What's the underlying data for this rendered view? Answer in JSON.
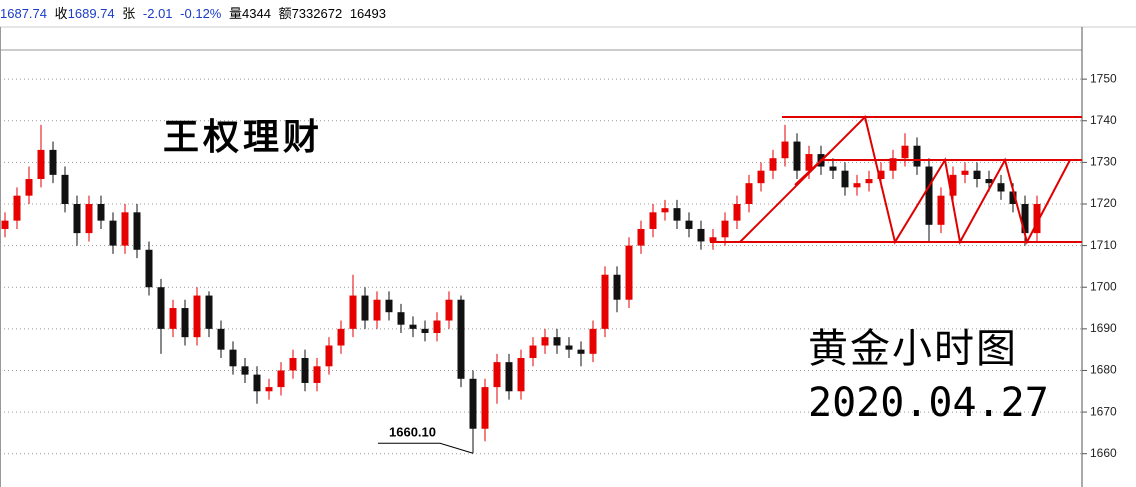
{
  "header": {
    "open": "1687.74",
    "close_label": "收",
    "close": "1689.74",
    "change_label": "张",
    "change": "-2.01",
    "change_pct": "-0.12%",
    "volume_label": "量",
    "volume": "4344",
    "amount_label": "额",
    "amount": "7332672",
    "extra": "16493"
  },
  "chart_data": {
    "type": "candlestick",
    "annotations": [
      "王权理财",
      "黄金小时图",
      "2020.04.27"
    ],
    "low_label": "1660.10",
    "up_color": "#e60000",
    "down_color": "#111111",
    "ylim": [
      1652,
      1757
    ],
    "yticks": [
      1660,
      1670,
      1680,
      1690,
      1700,
      1710,
      1720,
      1730,
      1740,
      1750
    ],
    "grid": true,
    "open": [
      1714,
      1716,
      1722,
      1726,
      1733,
      1727,
      1720,
      1713,
      1720,
      1716,
      1710,
      1718,
      1709,
      1700,
      1690,
      1695,
      1688,
      1698,
      1690,
      1685,
      1681,
      1679,
      1675,
      1676,
      1680,
      1683,
      1677,
      1681,
      1686,
      1690,
      1698,
      1692,
      1697,
      1694,
      1691,
      1690,
      1689,
      1692,
      1697,
      1678,
      1666,
      1676,
      1682,
      1675,
      1683,
      1686,
      1688,
      1686,
      1685,
      1684,
      1690,
      1703,
      1697,
      1710,
      1714,
      1718,
      1719,
      1716,
      1714,
      1711,
      1712,
      1716,
      1720,
      1725,
      1728,
      1731,
      1735,
      1728,
      1732,
      1729,
      1728,
      1724,
      1725,
      1726,
      1728,
      1731,
      1734,
      1729,
      1715,
      1722,
      1727,
      1728,
      1726,
      1725,
      1723,
      1720,
      1713
    ],
    "high": [
      1718,
      1724,
      1729,
      1739,
      1735,
      1729,
      1722,
      1722,
      1722,
      1718,
      1720,
      1720,
      1711,
      1702,
      1697,
      1697,
      1700,
      1699,
      1692,
      1687,
      1683,
      1681,
      1678,
      1682,
      1685,
      1685,
      1683,
      1688,
      1692,
      1703,
      1700,
      1699,
      1699,
      1696,
      1693,
      1692,
      1694,
      1699,
      1698,
      1680,
      1678,
      1684,
      1684,
      1685,
      1688,
      1690,
      1690,
      1688,
      1687,
      1692,
      1705,
      1705,
      1712,
      1716,
      1720,
      1721,
      1721,
      1718,
      1716,
      1714,
      1718,
      1722,
      1727,
      1730,
      1733,
      1739,
      1737,
      1734,
      1734,
      1731,
      1730,
      1727,
      1728,
      1730,
      1733,
      1737,
      1736,
      1731,
      1724,
      1729,
      1730,
      1730,
      1728,
      1727,
      1725,
      1722,
      1722
    ],
    "low": [
      1712,
      1714,
      1720,
      1724,
      1725,
      1718,
      1710,
      1711,
      1714,
      1708,
      1708,
      1707,
      1698,
      1684,
      1688,
      1686,
      1686,
      1688,
      1683,
      1679,
      1677,
      1672,
      1673,
      1674,
      1678,
      1675,
      1675,
      1679,
      1684,
      1688,
      1690,
      1690,
      1692,
      1689,
      1688,
      1687,
      1687,
      1690,
      1676,
      1660.1,
      1663,
      1672,
      1673,
      1673,
      1681,
      1684,
      1684,
      1683,
      1681,
      1682,
      1688,
      1694,
      1695,
      1708,
      1712,
      1716,
      1714,
      1712,
      1709,
      1709,
      1710,
      1714,
      1718,
      1723,
      1726,
      1729,
      1726,
      1726,
      1727,
      1726,
      1722,
      1722,
      1723,
      1724,
      1726,
      1729,
      1727,
      1711,
      1713,
      1720,
      1725,
      1724,
      1723,
      1721,
      1718,
      1710,
      1711
    ],
    "close": [
      1716,
      1722,
      1726,
      1733,
      1727,
      1720,
      1713,
      1720,
      1716,
      1710,
      1718,
      1709,
      1700,
      1690,
      1695,
      1688,
      1698,
      1690,
      1685,
      1681,
      1679,
      1675,
      1676,
      1680,
      1683,
      1677,
      1681,
      1686,
      1690,
      1698,
      1692,
      1697,
      1694,
      1691,
      1690,
      1689,
      1692,
      1697,
      1678,
      1666,
      1676,
      1682,
      1675,
      1683,
      1686,
      1688,
      1686,
      1685,
      1684,
      1690,
      1703,
      1697,
      1710,
      1714,
      1718,
      1719,
      1716,
      1714,
      1711,
      1712,
      1716,
      1720,
      1725,
      1728,
      1731,
      1735,
      1728,
      1732,
      1729,
      1728,
      1724,
      1725,
      1726,
      1728,
      1731,
      1734,
      1729,
      1715,
      1722,
      1727,
      1728,
      1726,
      1725,
      1723,
      1720,
      1713,
      1720
    ]
  }
}
